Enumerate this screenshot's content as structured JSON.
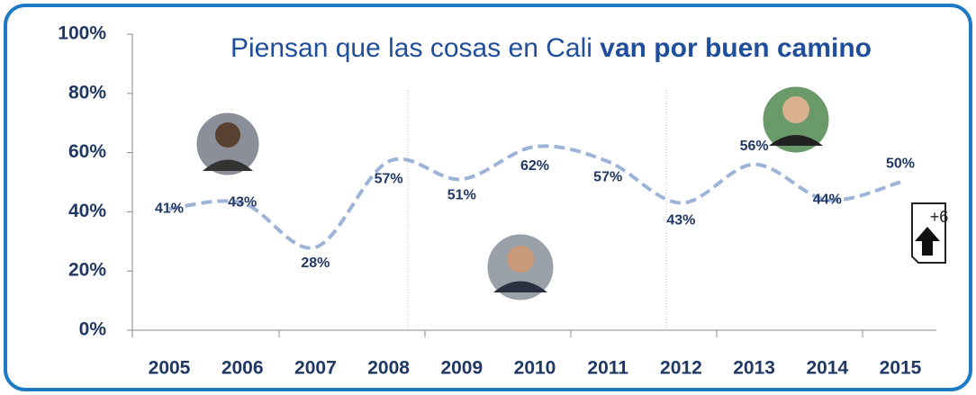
{
  "chart_data": {
    "type": "line",
    "title": "Piensan que las cosas en Cali",
    "title_emphasis": "van por buen camino",
    "categories": [
      "2005",
      "2006",
      "2007",
      "2008",
      "2009",
      "2010",
      "2011",
      "2012",
      "2013",
      "2014",
      "2015"
    ],
    "values": [
      41,
      43,
      28,
      57,
      51,
      62,
      57,
      43,
      56,
      44,
      50
    ],
    "value_labels": [
      "41%",
      "43%",
      "28%",
      "57%",
      "51%",
      "62%",
      "57%",
      "43%",
      "56%",
      "44%",
      "50%"
    ],
    "color": "#9db3d8",
    "ylim": [
      0,
      100
    ],
    "yticks": [
      {
        "value": 0,
        "label": "0%"
      },
      {
        "value": 20,
        "label": "20%"
      },
      {
        "value": 40,
        "label": "40%"
      },
      {
        "value": 60,
        "label": "60%"
      },
      {
        "value": 80,
        "label": "80%"
      },
      {
        "value": 100,
        "label": "100%"
      }
    ],
    "annotation": "+6"
  }
}
